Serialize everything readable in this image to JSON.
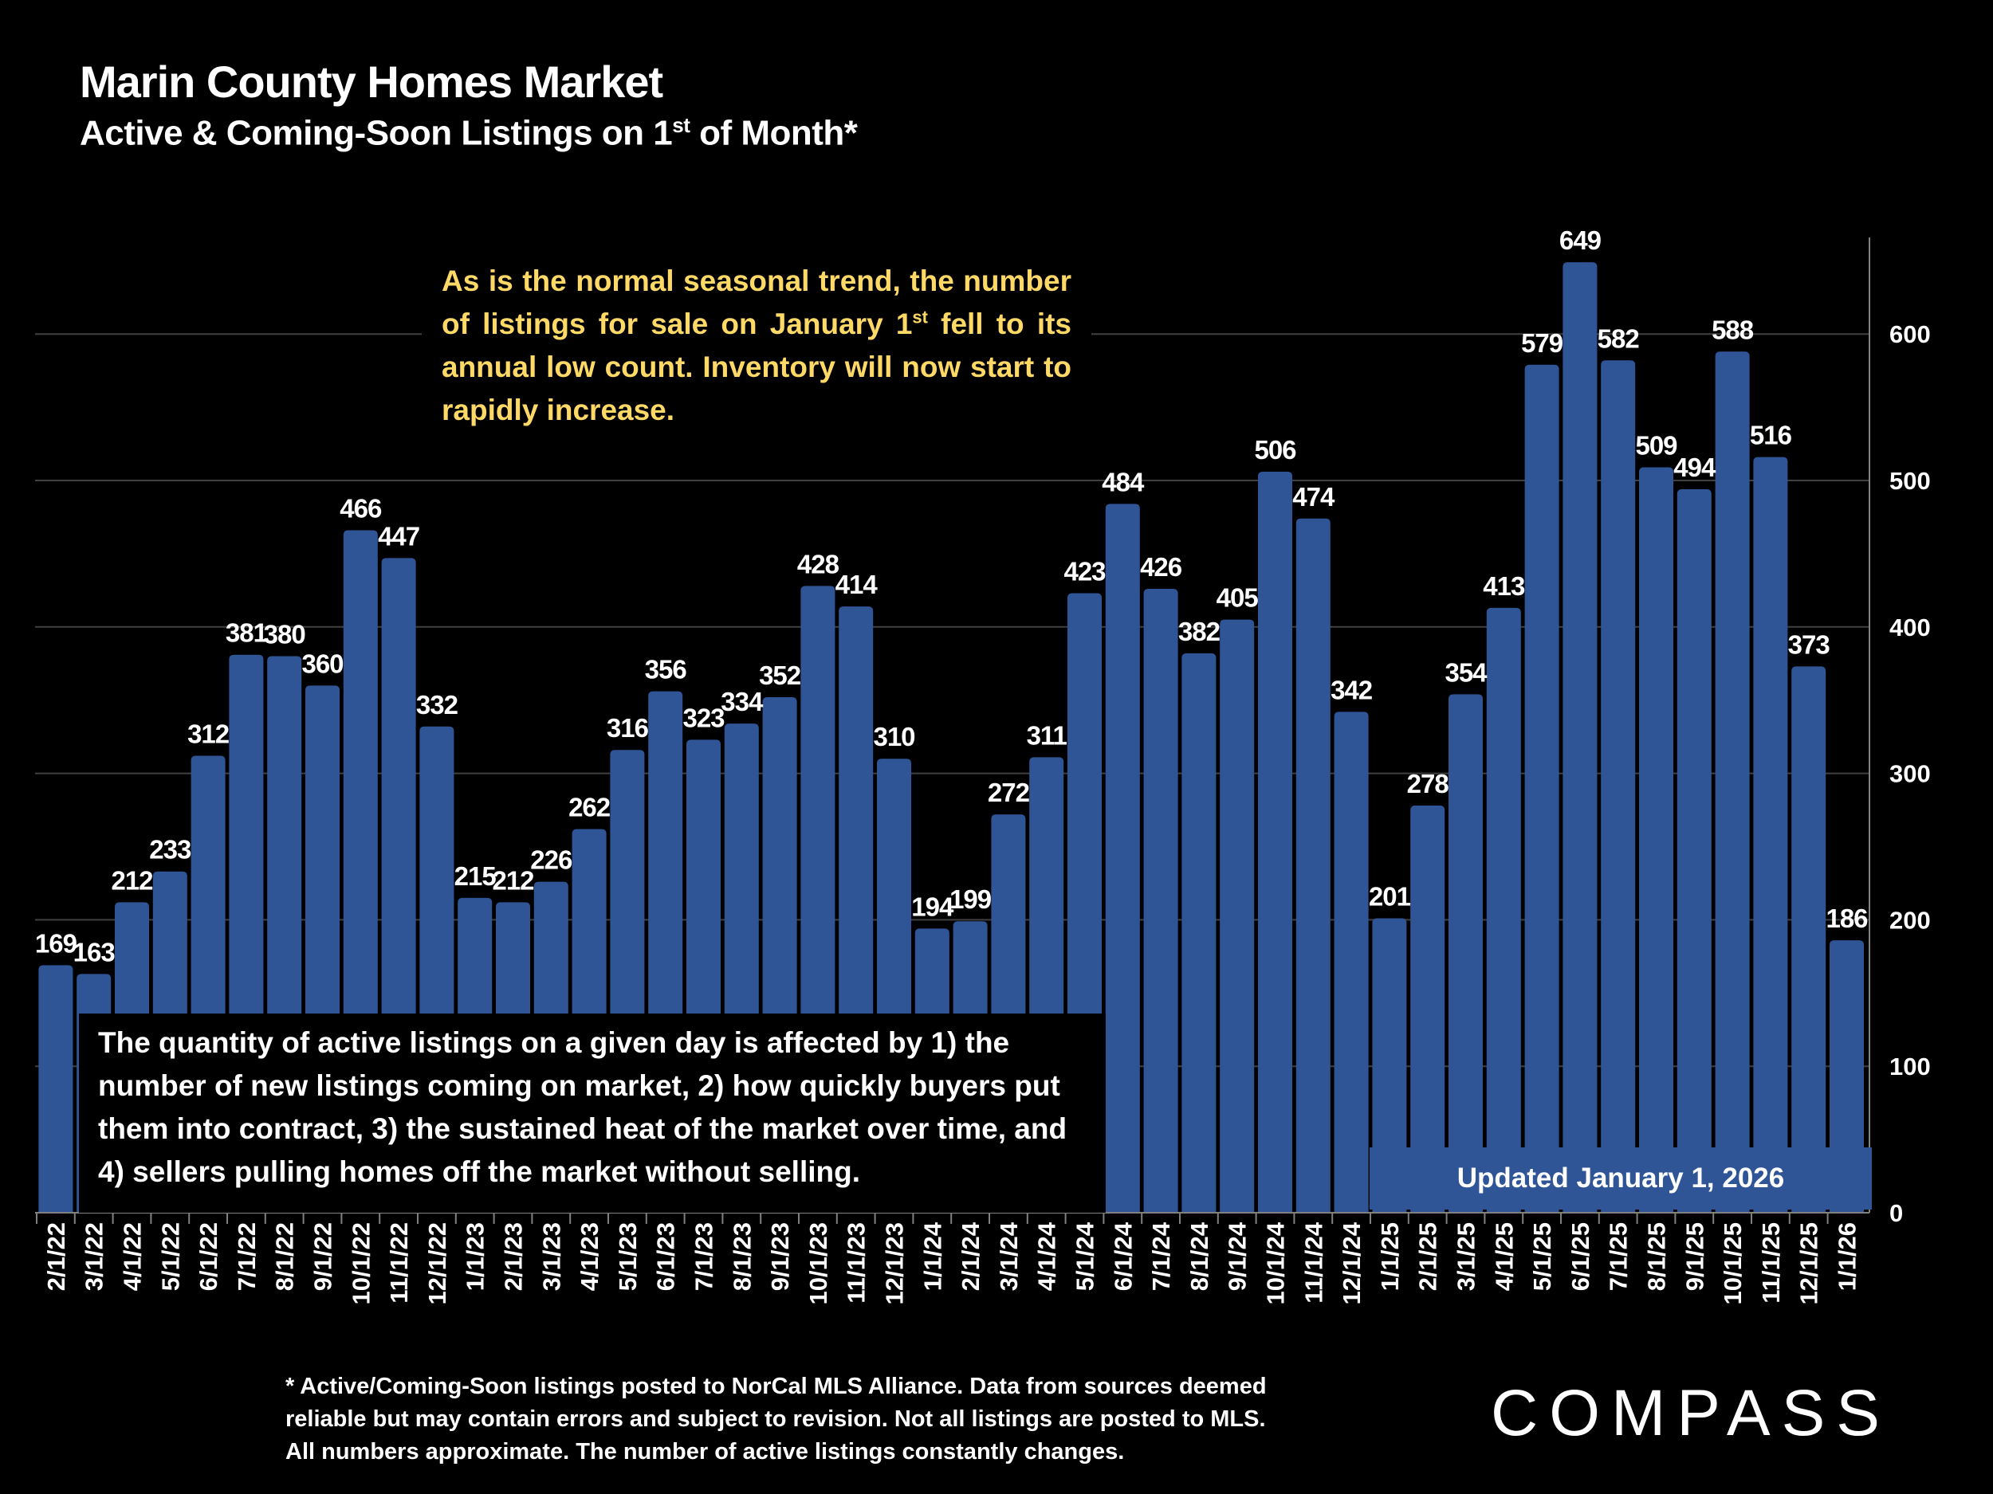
{
  "header": {
    "title": "Marin County Homes Market",
    "subtitle_main": "Active & Coming-Soon Listings on 1",
    "subtitle_sup": "st",
    "subtitle_end": " of Month*"
  },
  "annotations": {
    "top_note_a": "As is the normal seasonal trend, the number of listings for sale on January 1",
    "top_note_sup": "st",
    "top_note_b": " fell to its annual low count. Inventory will now start to rapidly increase.",
    "bottom_note": "The quantity of active listings on a given day is affected by 1) the number of new listings coming on market, 2) how quickly buyers put them into contract, 3) the sustained heat of the market over time, and 4) sellers pulling homes off the market without selling.",
    "updated": "Updated January 1, 2026"
  },
  "footnote": [
    "* Active/Coming-Soon listings posted to NorCal MLS Alliance.  Data from sources deemed",
    "reliable but may contain errors and subject to revision.  Not all listings are posted to MLS.",
    "All numbers approximate. The number of active listings constantly changes."
  ],
  "logo": "COMPASS",
  "colors": {
    "bar": "#2F5597",
    "annotation_text": "#FFD966",
    "grid": "#404040",
    "background": "#000000"
  },
  "chart_data": {
    "type": "bar",
    "title": "Marin County Homes Market",
    "subtitle": "Active & Coming-Soon Listings on 1st of Month*",
    "categories": [
      "2/1/22",
      "3/1/22",
      "4/1/22",
      "5/1/22",
      "6/1/22",
      "7/1/22",
      "8/1/22",
      "9/1/22",
      "10/1/22",
      "11/1/22",
      "12/1/22",
      "1/1/23",
      "2/1/23",
      "3/1/23",
      "4/1/23",
      "5/1/23",
      "6/1/23",
      "7/1/23",
      "8/1/23",
      "9/1/23",
      "10/1/23",
      "11/1/23",
      "12/1/23",
      "1/1/24",
      "2/1/24",
      "3/1/24",
      "4/1/24",
      "5/1/24",
      "6/1/24",
      "7/1/24",
      "8/1/24",
      "9/1/24",
      "10/1/24",
      "11/1/24",
      "12/1/24",
      "1/1/25",
      "2/1/25",
      "3/1/25",
      "4/1/25",
      "5/1/25",
      "6/1/25",
      "7/1/25",
      "8/1/25",
      "9/1/25",
      "10/1/25",
      "11/1/25",
      "12/1/25",
      "1/1/26"
    ],
    "values": [
      169,
      163,
      212,
      233,
      312,
      381,
      380,
      360,
      466,
      447,
      332,
      215,
      212,
      226,
      262,
      316,
      356,
      323,
      334,
      352,
      428,
      414,
      310,
      194,
      199,
      272,
      311,
      423,
      484,
      426,
      382,
      405,
      506,
      474,
      342,
      201,
      278,
      354,
      413,
      579,
      649,
      582,
      509,
      494,
      588,
      516,
      373,
      186
    ],
    "y_ticks": [
      0,
      100,
      200,
      300,
      400,
      500,
      600
    ],
    "ylim": [
      0,
      665
    ],
    "y_axis_side": "right",
    "grid": true,
    "data_labels": true,
    "xlabel": "",
    "ylabel": ""
  }
}
